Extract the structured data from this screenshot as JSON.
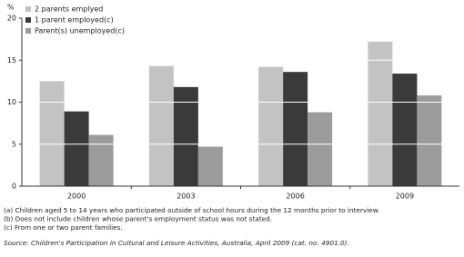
{
  "chart_data": {
    "type": "bar",
    "y_label": "%",
    "categories": [
      "2000",
      "2003",
      "2006",
      "2009"
    ],
    "series": [
      {
        "name": "2 parents emplyed",
        "color": "#c3c3c3",
        "values": [
          12.5,
          14.3,
          14.2,
          17.2
        ]
      },
      {
        "name": "1 parent employed(c)",
        "color": "#3a3a3a",
        "values": [
          8.9,
          11.8,
          13.6,
          13.4
        ]
      },
      {
        "name": "Parent(s) unemployed(c)",
        "color": "#9c9c9c",
        "values": [
          6.1,
          4.7,
          8.8,
          10.8
        ]
      }
    ],
    "ylim": [
      0,
      20
    ],
    "yticks": [
      0,
      5,
      10,
      15,
      20
    ],
    "grid": true,
    "notes": [
      "(a) Children aged 5 to 14 years who participated outside of school hours during the 12 months prior to interview.",
      "(b) Does not include children whose parent's employment status was not stated.",
      "(c) From one or two parent families."
    ],
    "source": "Source: Children's Participation in Cultural and Leisure Activities, Australia, April 2009 (cat. no. 4901.0)."
  }
}
